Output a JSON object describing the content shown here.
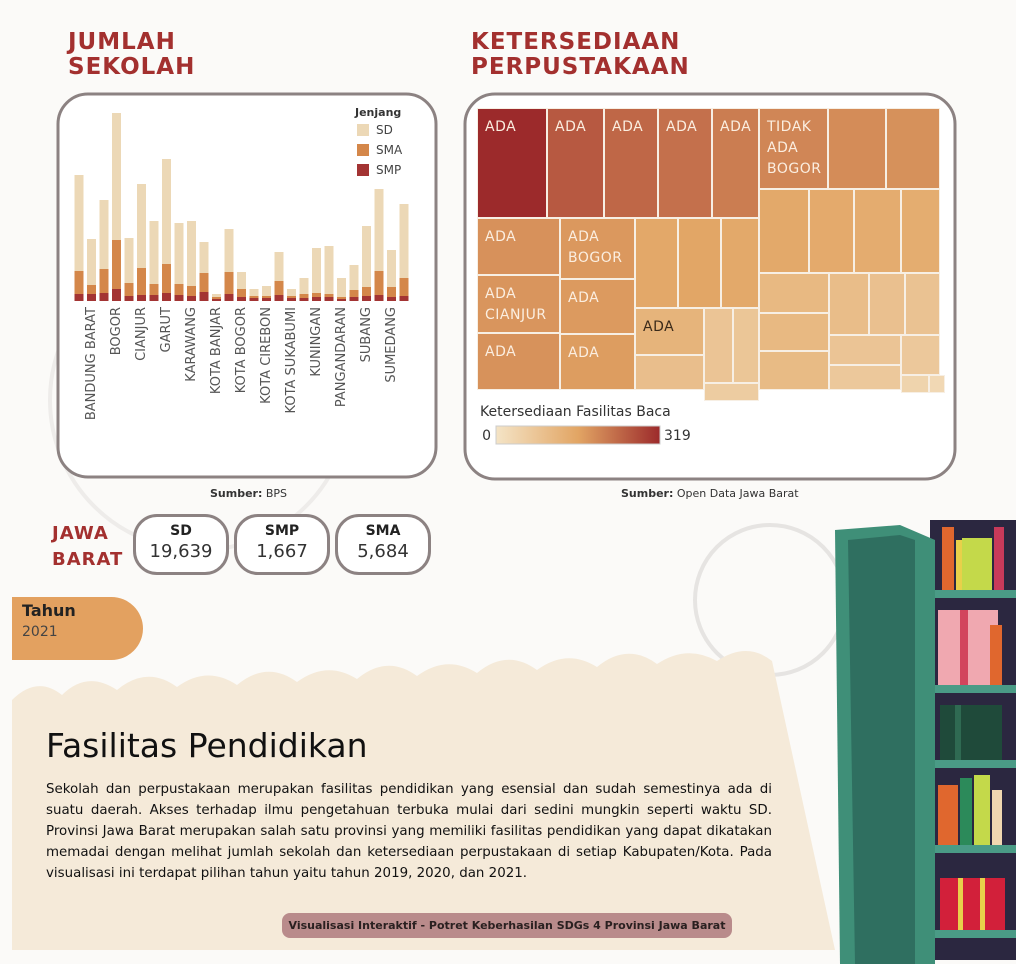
{
  "chart_data": [
    {
      "type": "bar",
      "stacked": true,
      "title_lines": [
        "JUMLAH",
        "SEKOLAH"
      ],
      "legend_title": "Jenjang",
      "source_label": "Sumber:",
      "source": "BPS",
      "categories": [
        null,
        "BANDUNG BARAT",
        null,
        "BOGOR",
        null,
        "CIANJUR",
        null,
        "GARUT",
        null,
        "KARAWANG",
        null,
        "KOTA BANJAR",
        null,
        "KOTA BOGOR",
        null,
        "KOTA CIREBON",
        null,
        "KOTA SUKABUMI",
        null,
        "KUNINGAN",
        null,
        "PANGANDARAN",
        null,
        "SUBANG",
        null,
        "SUMEDANG",
        null
      ],
      "series": [
        {
          "name": "SD",
          "color": "#ecd8b6",
          "values": [
            960,
            460,
            690,
            1270,
            450,
            840,
            630,
            1050,
            610,
            650,
            310,
            30,
            430,
            170,
            70,
            100,
            290,
            70,
            160,
            450,
            480,
            190,
            250,
            610,
            820,
            370,
            740
          ]
        },
        {
          "name": "SMA",
          "color": "#d4874a",
          "values": [
            230,
            90,
            240,
            490,
            130,
            270,
            110,
            290,
            110,
            100,
            190,
            20,
            220,
            80,
            20,
            20,
            140,
            20,
            40,
            40,
            30,
            20,
            70,
            90,
            240,
            100,
            180
          ]
        },
        {
          "name": "SMP",
          "color": "#a33433",
          "values": [
            70,
            70,
            80,
            120,
            50,
            60,
            60,
            80,
            60,
            50,
            90,
            20,
            70,
            40,
            30,
            30,
            60,
            30,
            30,
            40,
            40,
            20,
            40,
            50,
            60,
            40,
            50
          ]
        }
      ],
      "ylim": [
        0,
        2000
      ]
    },
    {
      "type": "treemap",
      "title_lines": [
        "KETERSEDIAAN",
        "PERPUSTAKAAN"
      ],
      "legend_title": "Ketersediaan Fasilitas Baca",
      "color_range": [
        0,
        319
      ],
      "colors": [
        "#f4e4c6",
        "#e2a564",
        "#9c2a2b"
      ],
      "source_label": "Sumber:",
      "source": "Open Data Jawa Barat",
      "items": [
        {
          "label": "ADA",
          "value": 319
        },
        {
          "label": "ADA",
          "value": 258
        },
        {
          "label": "ADA",
          "value": 240
        },
        {
          "label": "ADA",
          "value": 228
        },
        {
          "label": "ADA",
          "value": 212
        },
        {
          "label": "TIDAK ADA BOGOR",
          "value": 200
        },
        {
          "label": null,
          "value": 192
        },
        {
          "label": null,
          "value": 186
        },
        {
          "label": "ADA",
          "value": 185
        },
        {
          "label": "ADA BOGOR",
          "value": 176
        },
        {
          "label": "ADA CIANJUR",
          "value": 180
        },
        {
          "label": "ADA",
          "value": 174
        },
        {
          "label": "ADA",
          "value": 184
        },
        {
          "label": "ADA",
          "value": 170
        },
        {
          "label": null,
          "value": 152
        },
        {
          "label": null,
          "value": 156
        },
        {
          "label": null,
          "value": 150
        },
        {
          "label": "ADA",
          "value": 122
        },
        {
          "label": null,
          "value": 95
        },
        {
          "label": null,
          "value": 80
        },
        {
          "label": null,
          "value": 76
        },
        {
          "label": null,
          "value": 60
        },
        {
          "label": null,
          "value": 150
        },
        {
          "label": null,
          "value": 146
        },
        {
          "label": null,
          "value": 142
        },
        {
          "label": null,
          "value": 140
        },
        {
          "label": null,
          "value": 110
        },
        {
          "label": null,
          "value": 100
        },
        {
          "label": null,
          "value": 90
        },
        {
          "label": null,
          "value": 85
        },
        {
          "label": null,
          "value": 110
        },
        {
          "label": null,
          "value": 105
        },
        {
          "label": null,
          "value": 80
        },
        {
          "label": null,
          "value": 70
        },
        {
          "label": null,
          "value": 70
        },
        {
          "label": null,
          "value": 40
        },
        {
          "label": null,
          "value": 30
        }
      ]
    }
  ],
  "summary": {
    "region_lines": [
      "JAWA",
      "BARAT"
    ],
    "cards": [
      {
        "label": "SD",
        "value": "19,639"
      },
      {
        "label": "SMP",
        "value": "1,667"
      },
      {
        "label": "SMA",
        "value": "5,684"
      }
    ]
  },
  "filter": {
    "label": "Tahun",
    "value": "2021"
  },
  "article": {
    "heading": "Fasilitas Pendidikan",
    "body": "Sekolah dan perpustakaan merupakan fasilitas pendidikan yang esensial dan sudah semestinya ada di suatu daerah. Akses terhadap ilmu pengetahuan terbuka mulai dari sedini mungkin seperti waktu SD. Provinsi Jawa Barat merupakan salah satu provinsi yang memiliki fasilitas pendidikan yang dapat dikatakan memadai dengan melihat jumlah sekolah dan ketersediaan perpustakaan di setiap Kabupaten/Kota. Pada visualisasi ini terdapat pilihan tahun yaitu tahun 2019, 2020, dan 2021.",
    "footer": "Visualisasi Interaktif - Potret Keberhasilan SDGs 4 Provinsi Jawa Barat"
  }
}
